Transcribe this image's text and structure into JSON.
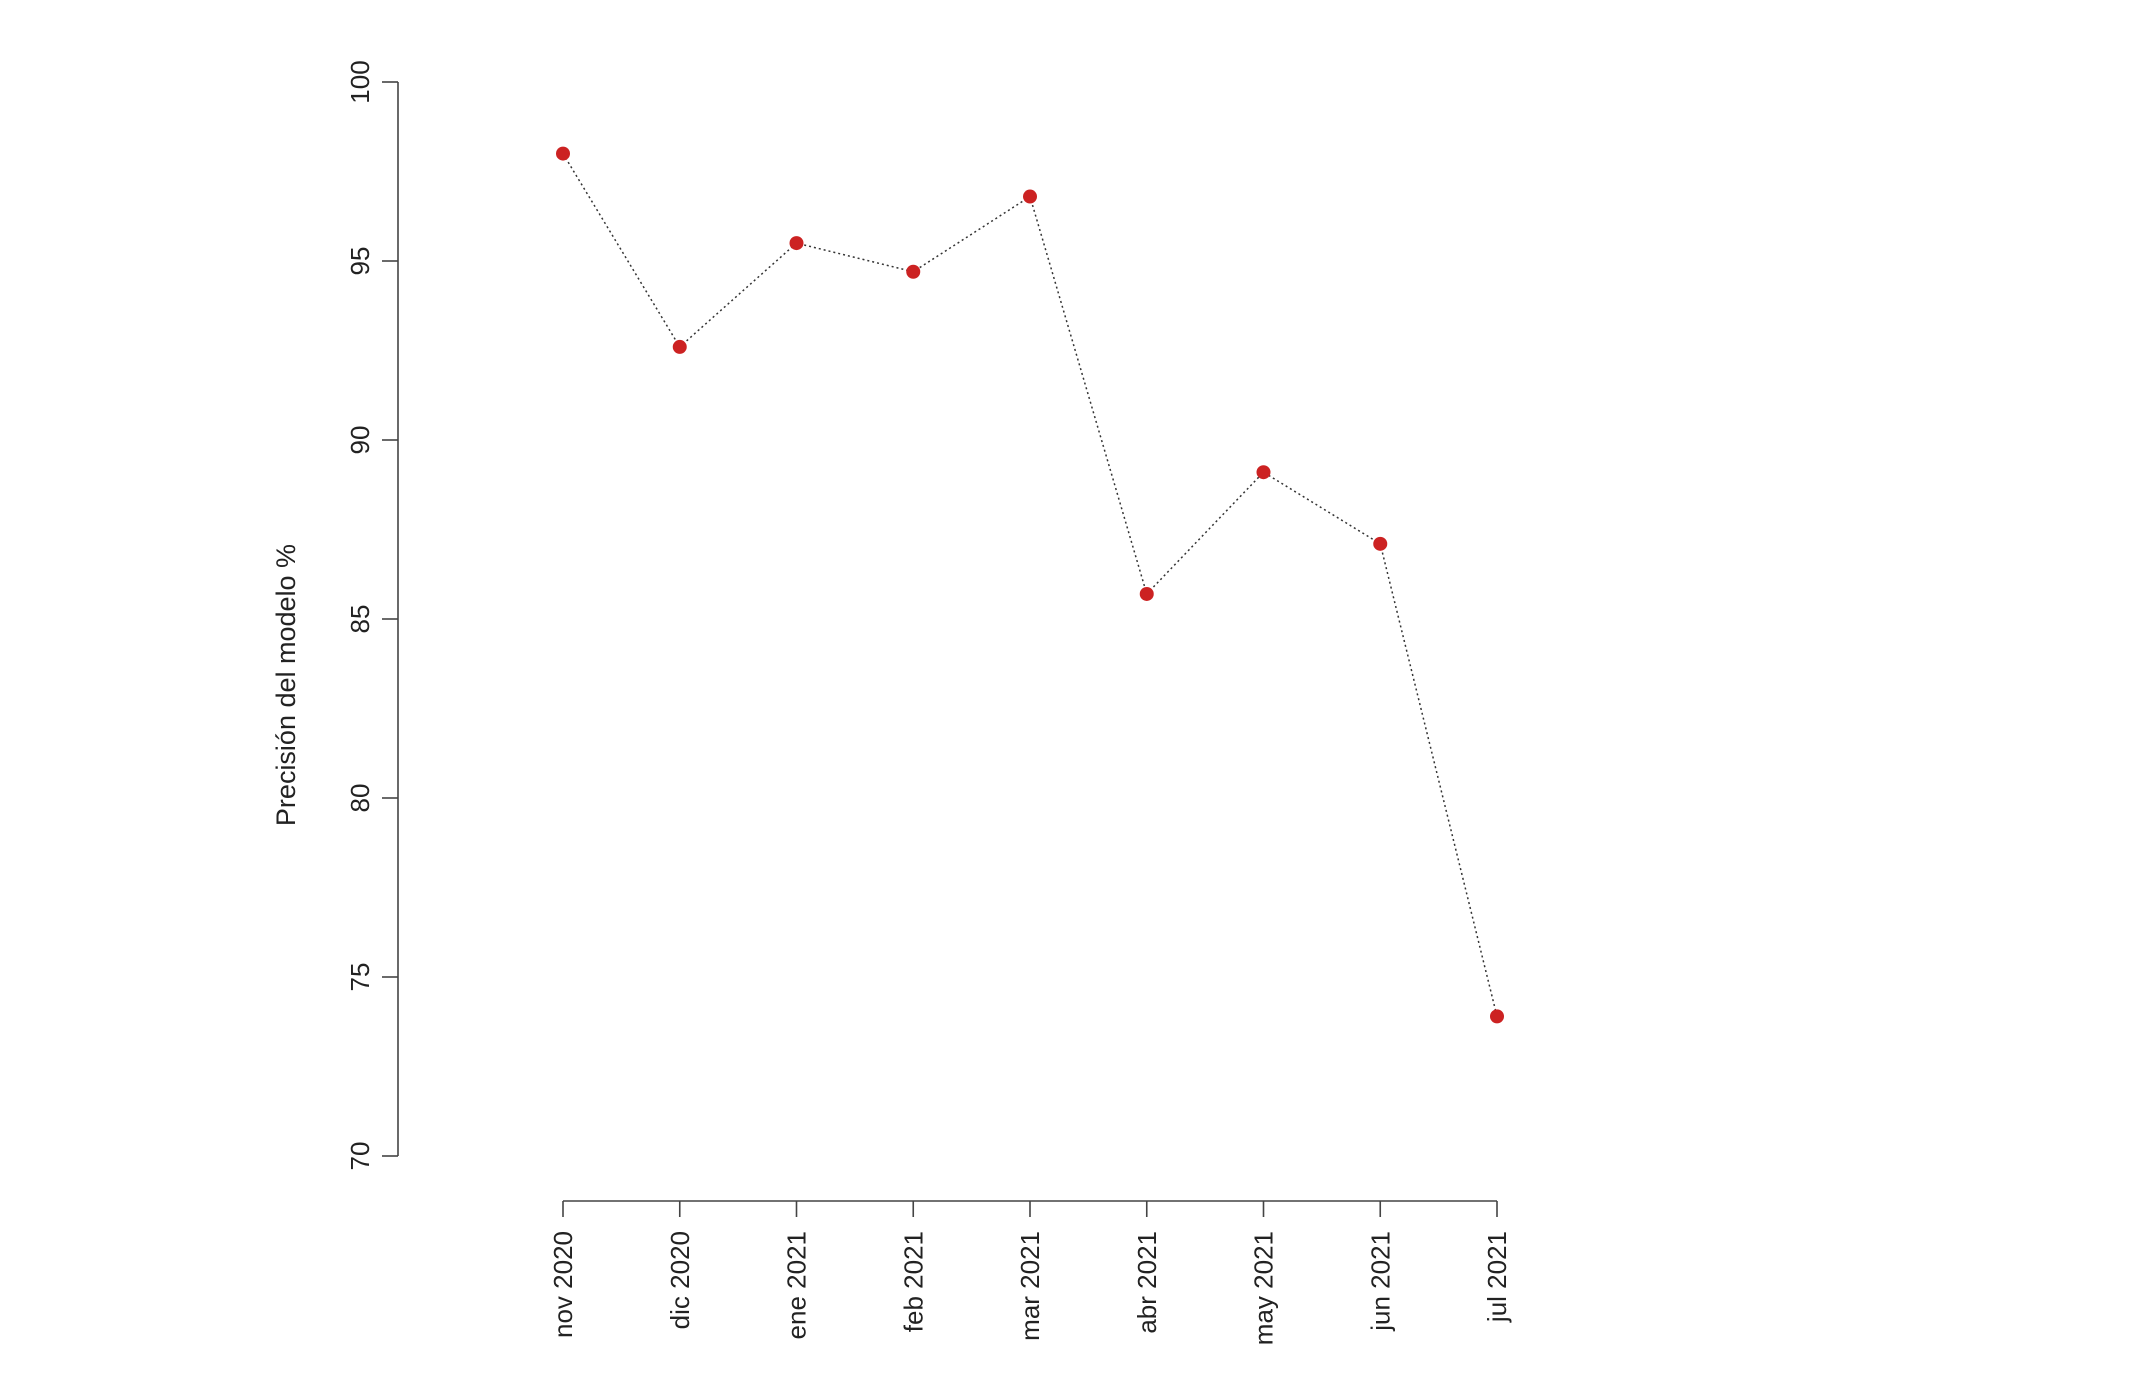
{
  "chart_data": {
    "type": "line",
    "title": "",
    "xlabel": "",
    "ylabel": "Precisión del modelo %",
    "categories": [
      "nov 2020",
      "dic 2020",
      "ene 2021",
      "feb 2021",
      "mar 2021",
      "abr 2021",
      "may 2021",
      "jun 2021",
      "jul 2021"
    ],
    "series": [
      {
        "values": [
          98.0,
          92.6,
          95.5,
          94.7,
          96.8,
          85.7,
          89.1,
          87.1,
          73.9
        ]
      }
    ],
    "ylim": [
      70,
      100
    ],
    "yticks": [
      "70",
      "75",
      "80",
      "85",
      "90",
      "95",
      "100"
    ],
    "grid": false,
    "legend": "none",
    "colors": {
      "marker": "#cc2222",
      "line": "#333333",
      "axis": "#444444"
    }
  }
}
